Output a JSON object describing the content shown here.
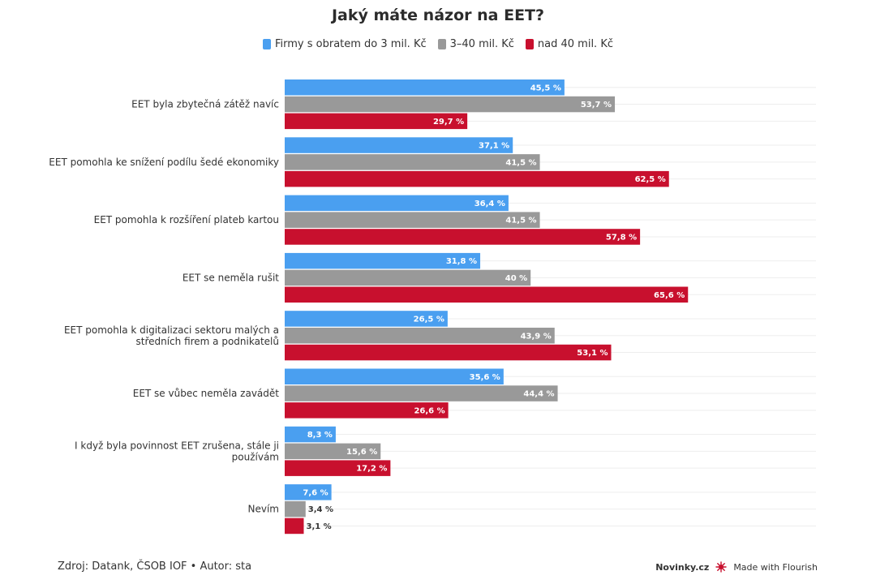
{
  "chart_data": {
    "type": "bar",
    "orientation": "horizontal",
    "title": "Jaký máte názor na EET?",
    "categories": [
      [
        "EET byla zbytečná zátěž navíc"
      ],
      [
        "EET pomohla ke snížení podílu šedé ekonomiky"
      ],
      [
        "EET pomohla k rozšíření plateb kartou"
      ],
      [
        "EET se neměla rušit"
      ],
      [
        "EET pomohla k digitalizaci sektoru malých a",
        "středních firem a podnikatelů"
      ],
      [
        "EET se vůbec neměla zavádět"
      ],
      [
        "I když byla povinnost EET zrušena, stále ji",
        "používám"
      ],
      [
        "Nevím"
      ]
    ],
    "series": [
      {
        "name": "Firmy s obratem do 3 mil. Kč",
        "color": "#4a9ff0",
        "values": [
          45.5,
          37.1,
          36.4,
          31.8,
          26.5,
          35.6,
          8.3,
          7.6
        ],
        "labels": [
          "45,5 %",
          "37,1 %",
          "36,4 %",
          "31,8 %",
          "26,5 %",
          "35,6 %",
          "8,3 %",
          "7,6 %"
        ]
      },
      {
        "name": "3–40 mil. Kč",
        "color": "#999999",
        "values": [
          53.7,
          41.5,
          41.5,
          40,
          43.9,
          44.4,
          15.6,
          3.4
        ],
        "labels": [
          "53,7 %",
          "41,5 %",
          "41,5 %",
          "40 %",
          "43,9 %",
          "44,4 %",
          "15,6 %",
          "3,4 %"
        ]
      },
      {
        "name": "nad 40 mil. Kč",
        "color": "#c8102e",
        "values": [
          29.7,
          62.5,
          57.8,
          65.6,
          53.1,
          26.6,
          17.2,
          3.1
        ],
        "labels": [
          "29,7 %",
          "62,5 %",
          "57,8 %",
          "65,6 %",
          "53,1 %",
          "26,6 %",
          "17,2 %",
          "3,1 %"
        ]
      }
    ],
    "xlim": [
      0,
      70
    ],
    "grid": true,
    "legend": "top-center"
  },
  "footer": {
    "source": "Zdroj: Datank, ČSOB IOF • Autor: sta",
    "brand": "Novinky.cz",
    "made_with": "Made with Flourish"
  }
}
